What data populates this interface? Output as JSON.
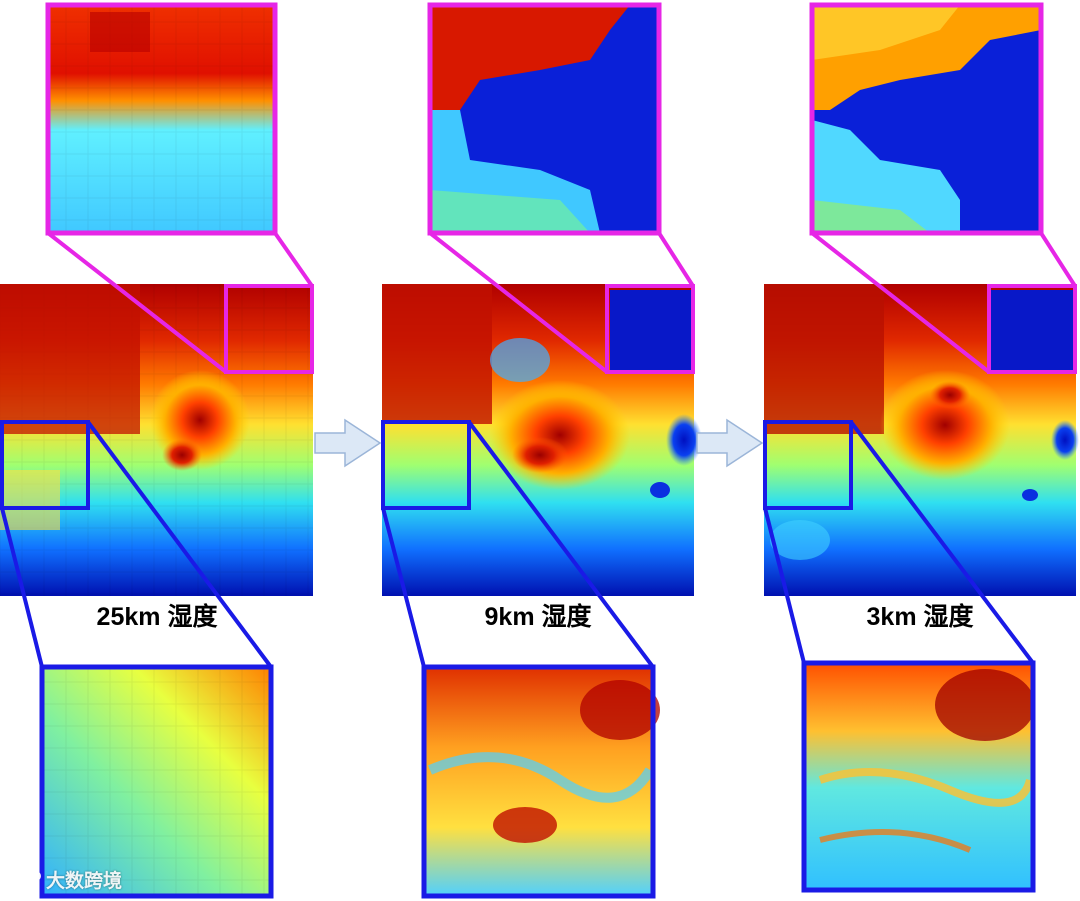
{
  "labels": {
    "res_25km": "25km 湿度",
    "res_9km": "9km 湿度",
    "res_3km": "3km 湿度"
  },
  "watermark": {
    "logo_name": "big-data-logo-icon",
    "text": "大数跨境"
  },
  "colors": {
    "zoom_top_frame": "#e626e6",
    "zoom_bottom_frame": "#1a1ae6",
    "arrow_fill": "#dce8f6",
    "arrow_stroke": "#9bb5d8",
    "colormap": "jet"
  },
  "icons": [
    "right-arrow-icon",
    "right-arrow-icon"
  ]
}
